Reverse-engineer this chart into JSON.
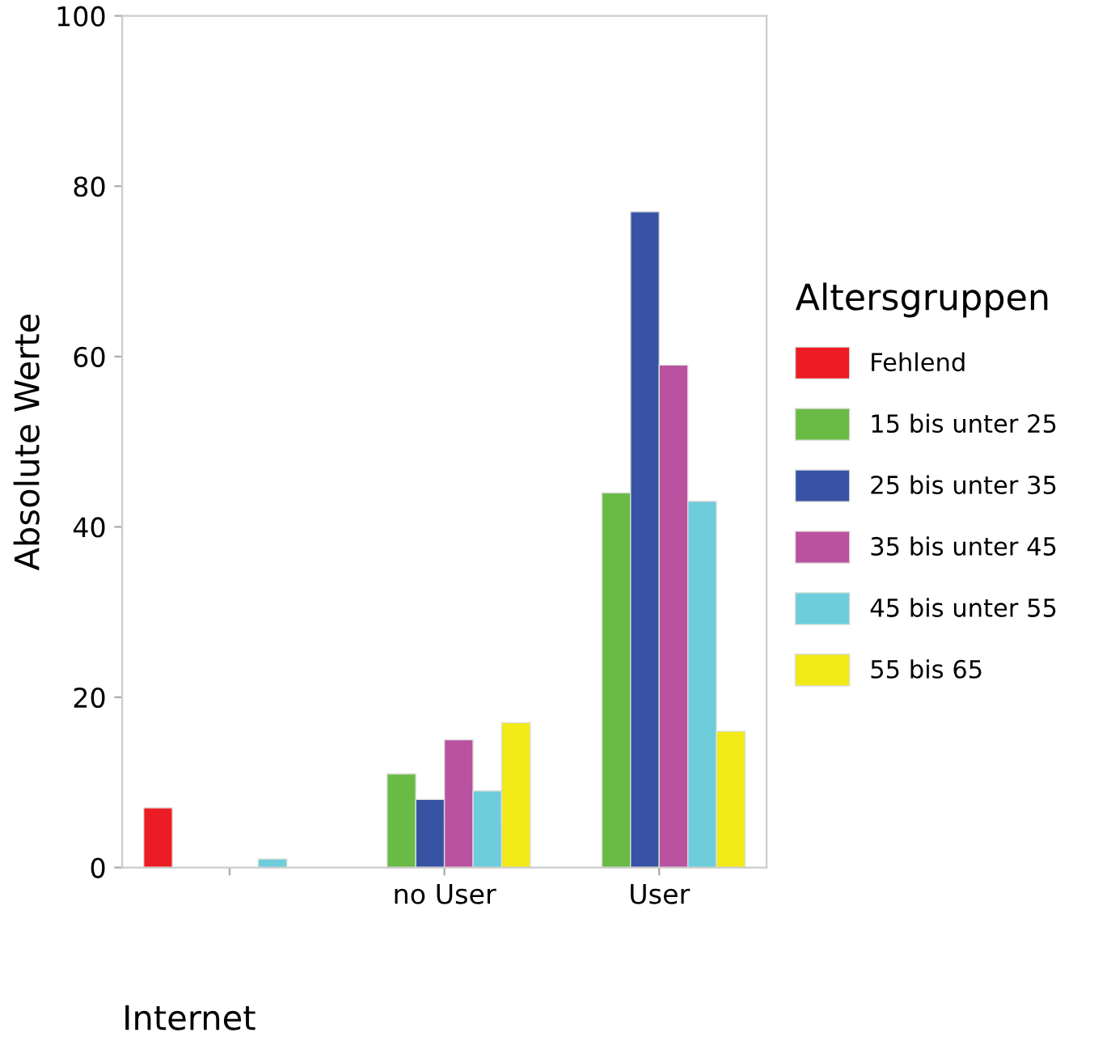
{
  "chart_data": {
    "type": "bar",
    "xlabel": "Internet",
    "ylabel": "Absolute Werte",
    "legend_title": "Altersgruppen",
    "categories": [
      null,
      "no User",
      "User"
    ],
    "series": [
      {
        "name": "Fehlend",
        "color": "#ed1c24",
        "values": [
          7,
          null,
          null
        ]
      },
      {
        "name": "15 bis unter 25",
        "color": "#6abb45",
        "values": [
          null,
          11,
          44
        ]
      },
      {
        "name": "25 bis unter 35",
        "color": "#3853a4",
        "values": [
          null,
          8,
          77
        ]
      },
      {
        "name": "35 bis unter 45",
        "color": "#b9529f",
        "values": [
          null,
          15,
          59
        ]
      },
      {
        "name": "45 bis unter 55",
        "color": "#6dcddb",
        "values": [
          1,
          9,
          43
        ]
      },
      {
        "name": "55 bis 65",
        "color": "#f1ea17",
        "values": [
          null,
          17,
          16
        ]
      }
    ],
    "ylim": [
      0,
      100
    ],
    "yticks": [
      0,
      20,
      40,
      60,
      80,
      100
    ],
    "grid": false,
    "legend": "right"
  }
}
